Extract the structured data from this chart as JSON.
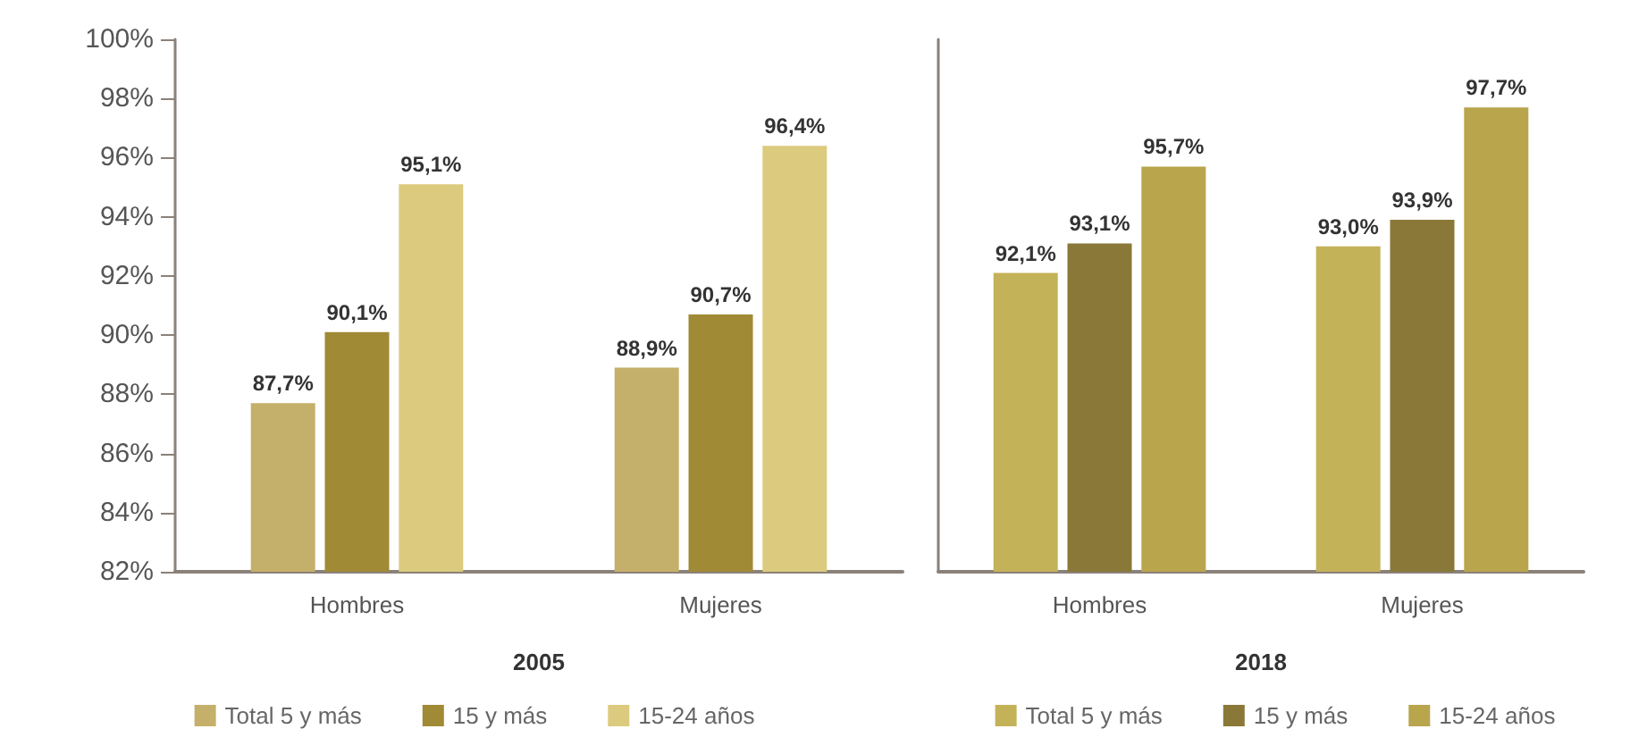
{
  "chart_data": [
    {
      "type": "bar",
      "xlabel": "2005",
      "categories": [
        "Hombres",
        "Mujeres"
      ],
      "ylim": [
        82,
        100
      ],
      "yticks": [
        {
          "value": 82,
          "label": "82%"
        },
        {
          "value": 84,
          "label": "84%"
        },
        {
          "value": 86,
          "label": "86%"
        },
        {
          "value": 88,
          "label": "88%"
        },
        {
          "value": 90,
          "label": "90%"
        },
        {
          "value": 92,
          "label": "92%"
        },
        {
          "value": 94,
          "label": "94%"
        },
        {
          "value": 96,
          "label": "96%"
        },
        {
          "value": 98,
          "label": "98%"
        },
        {
          "value": 100,
          "label": "100%"
        }
      ],
      "grid": false,
      "legend": "bottom",
      "series": [
        {
          "name": "Total 5 y más",
          "color": "#c4b06a",
          "values": [
            87.7,
            88.9
          ],
          "value_labels": [
            "87,7%",
            "88,9%"
          ]
        },
        {
          "name": "15 y más",
          "color": "#a08a35",
          "values": [
            90.1,
            90.7
          ],
          "value_labels": [
            "90,1%",
            "90,7%"
          ]
        },
        {
          "name": "15-24 años",
          "color": "#dccb7e",
          "values": [
            95.1,
            96.4
          ],
          "value_labels": [
            "95,1%",
            "96,4%"
          ]
        }
      ]
    },
    {
      "type": "bar",
      "xlabel": "2018",
      "categories": [
        "Hombres",
        "Mujeres"
      ],
      "ylim": [
        82,
        100
      ],
      "tick_labels": "x",
      "grid": false,
      "legend": "bottom",
      "series": [
        {
          "name": "Total 5 y más",
          "color": "#c4b258",
          "values": [
            92.1,
            93.0
          ],
          "value_labels": [
            "92,1%",
            "93,0%"
          ]
        },
        {
          "name": "15 y más",
          "color": "#8a7838",
          "values": [
            93.1,
            93.9
          ],
          "value_labels": [
            "93,1%",
            "93,9%"
          ]
        },
        {
          "name": "15-24 años",
          "color": "#b9a54c",
          "values": [
            95.7,
            97.7
          ],
          "value_labels": [
            "95,7%",
            "97,7%"
          ]
        }
      ]
    }
  ]
}
